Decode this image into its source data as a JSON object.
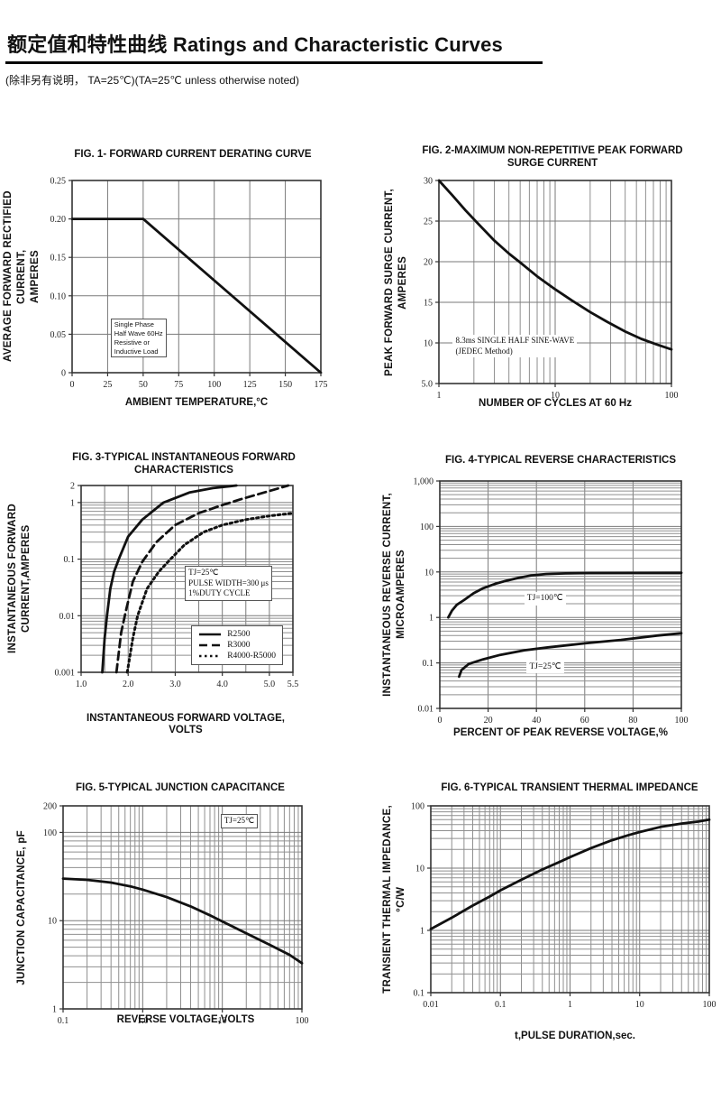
{
  "page": {
    "title": "额定值和特性曲线 Ratings and Characteristic Curves",
    "subtitle": "(除非另有说明， TA=25℃)(TA=25℃  unless otherwise noted)"
  },
  "colors": {
    "curve": "#111111",
    "grid": "#8f8f8f",
    "grid_major": "#7a7a7a",
    "axis": "#333333",
    "background": "#ffffff"
  },
  "chart_data": [
    {
      "type": "line",
      "title": "FIG. 1- FORWARD CURRENT DERATING CURVE",
      "xlabel": "AMBIENT TEMPERATURE,°C",
      "ylabel": "AVERAGE FORWARD RECTIFIED CURRENT,\nAMPERES",
      "x_axis": {
        "scale": "linear",
        "min": 0,
        "max": 175,
        "grid_step": 25,
        "ticks": [
          0,
          25,
          50,
          75,
          100,
          125,
          150,
          175
        ],
        "tick_labels": [
          "0",
          "25",
          "50",
          "75",
          "100",
          "125",
          "150",
          "175"
        ]
      },
      "y_axis": {
        "scale": "linear",
        "min": 0,
        "max": 0.25,
        "grid_step": 0.05,
        "ticks": [
          0.25,
          0.2,
          0.15,
          0.1,
          0.05,
          0
        ],
        "tick_labels": [
          "0.25",
          "0.20",
          "0.15",
          "0.10",
          "0.05",
          "0"
        ]
      },
      "series": [
        {
          "name": "forward-current-derating",
          "style": "solid",
          "points": [
            [
              0,
              0.2
            ],
            [
              50,
              0.2
            ],
            [
              175,
              0
            ]
          ]
        }
      ],
      "annotations": [
        {
          "text": "Single Phase\nHalf Wave 60Hz\nResistive or\nInductive Load",
          "fx": 0.155,
          "fy": 0.72,
          "boxed": true,
          "font": "sans",
          "size": 7.5
        }
      ]
    },
    {
      "type": "line",
      "title": "FIG. 2-MAXIMUM NON-REPETITIVE PEAK FORWARD\nSURGE CURRENT",
      "xlabel": "NUMBER OF CYCLES AT 60 Hz",
      "ylabel": "PEAK  FORWARD SURGE CURRENT,\nAMPERES",
      "x_axis": {
        "scale": "log",
        "min": 1,
        "max": 100,
        "ticks": [
          1,
          10,
          100
        ],
        "tick_labels": [
          "1",
          "10",
          "100"
        ]
      },
      "y_axis": {
        "scale": "linear",
        "min": 5,
        "max": 30,
        "grid_step": 5,
        "ticks": [
          30,
          25,
          20,
          15,
          10,
          5
        ],
        "tick_labels": [
          "30",
          "25",
          "20",
          "15",
          "10",
          "5.0"
        ]
      },
      "series": [
        {
          "name": "peak-surge-current",
          "style": "solid",
          "points": [
            [
              1,
              30
            ],
            [
              1.3,
              28.2
            ],
            [
              1.7,
              26.3
            ],
            [
              2.2,
              24.6
            ],
            [
              3,
              22.6
            ],
            [
              4,
              21
            ],
            [
              5,
              19.9
            ],
            [
              7,
              18.2
            ],
            [
              10,
              16.6
            ],
            [
              14,
              15.2
            ],
            [
              20,
              13.8
            ],
            [
              28,
              12.6
            ],
            [
              40,
              11.4
            ],
            [
              55,
              10.5
            ],
            [
              75,
              9.8
            ],
            [
              100,
              9.2
            ]
          ]
        }
      ],
      "annotations": [
        {
          "text": "8.3ms SINGLE HALF SINE-WAVE\n(JEDEC Method)",
          "fx": 0.06,
          "fy": 0.76,
          "boxed": false,
          "font": "serif",
          "size": 9
        }
      ]
    },
    {
      "type": "line",
      "title": "FIG. 3-TYPICAL INSTANTANEOUS FORWARD\nCHARACTERISTICS",
      "xlabel": "INSTANTANEOUS FORWARD VOLTAGE,\nVOLTS",
      "ylabel": "INSTANTANEOUS FORWARD\nCURRENT,AMPERES",
      "x_axis": {
        "scale": "linear",
        "min": 1.0,
        "max": 5.5,
        "grid_step": 0.5,
        "ticks": [
          1.0,
          2.0,
          3.0,
          4.0,
          5.0,
          5.5
        ],
        "tick_labels": [
          "1.0",
          "2.0",
          "3.0",
          "4.0",
          "5.0",
          "5.5"
        ]
      },
      "y_axis": {
        "scale": "log",
        "min": 0.001,
        "max": 2,
        "ticks": [
          2,
          1,
          0.1,
          0.01,
          0.001
        ],
        "tick_labels": [
          "2",
          "1",
          "0.1",
          "0.01",
          "0.001"
        ]
      },
      "series": [
        {
          "name": "R2500",
          "style": "solid",
          "points": [
            [
              1.45,
              0.001
            ],
            [
              1.5,
              0.004
            ],
            [
              1.55,
              0.01
            ],
            [
              1.62,
              0.03
            ],
            [
              1.7,
              0.06
            ],
            [
              1.8,
              0.1
            ],
            [
              2.0,
              0.25
            ],
            [
              2.3,
              0.5
            ],
            [
              2.75,
              1.0
            ],
            [
              3.3,
              1.5
            ],
            [
              3.8,
              1.8
            ],
            [
              4.3,
              2.0
            ]
          ]
        },
        {
          "name": "R3000",
          "style": "dashed",
          "points": [
            [
              1.75,
              0.001
            ],
            [
              1.85,
              0.005
            ],
            [
              1.95,
              0.012
            ],
            [
              2.1,
              0.04
            ],
            [
              2.3,
              0.09
            ],
            [
              2.6,
              0.2
            ],
            [
              3.0,
              0.4
            ],
            [
              3.5,
              0.65
            ],
            [
              4.0,
              0.9
            ],
            [
              4.4,
              1.15
            ],
            [
              5.0,
              1.6
            ],
            [
              5.4,
              2.0
            ]
          ]
        },
        {
          "name": "R4000-R5000",
          "style": "dotted",
          "points": [
            [
              1.98,
              0.001
            ],
            [
              2.1,
              0.004
            ],
            [
              2.2,
              0.01
            ],
            [
              2.4,
              0.03
            ],
            [
              2.65,
              0.06
            ],
            [
              2.9,
              0.1
            ],
            [
              3.2,
              0.18
            ],
            [
              3.6,
              0.3
            ],
            [
              4.0,
              0.4
            ],
            [
              4.5,
              0.5
            ],
            [
              5.0,
              0.58
            ],
            [
              5.5,
              0.65
            ]
          ]
        }
      ],
      "annotations": [
        {
          "text": "TJ=25℃\nPULSE WIDTH=300 μs\n1%DUTY CYCLE",
          "fx": 0.49,
          "fy": 0.43,
          "boxed": true,
          "font": "serif",
          "size": 9
        }
      ],
      "legend": {
        "fx": 0.52,
        "fy": 0.75,
        "entries": [
          {
            "style": "solid",
            "label": "R2500"
          },
          {
            "style": "dashed",
            "label": "R3000"
          },
          {
            "style": "dotted",
            "label": "R4000-R5000"
          }
        ]
      }
    },
    {
      "type": "line",
      "title": "FIG. 4-TYPICAL REVERSE CHARACTERISTICS",
      "xlabel": "PERCENT OF PEAK REVERSE VOLTAGE,%",
      "ylabel": "INSTANTANEOUS REVERSE CURRENT,\nMICROAMPERES",
      "x_axis": {
        "scale": "linear",
        "min": 0,
        "max": 100,
        "grid_step": 20,
        "ticks": [
          0,
          20,
          40,
          60,
          80,
          100
        ],
        "tick_labels": [
          "0",
          "20",
          "40",
          "60",
          "80",
          "100"
        ]
      },
      "y_axis": {
        "scale": "log",
        "min": 0.01,
        "max": 1000,
        "ticks": [
          1000,
          100,
          10,
          1,
          0.1,
          0.01
        ],
        "tick_labels": [
          "1,000",
          "100",
          "10",
          "1",
          "0.1",
          "0.01"
        ]
      },
      "series": [
        {
          "name": "TJ=100C",
          "style": "solid",
          "points": [
            [
              3.5,
              1
            ],
            [
              5,
              1.4
            ],
            [
              7,
              1.9
            ],
            [
              10,
              2.4
            ],
            [
              14,
              3.4
            ],
            [
              18,
              4.4
            ],
            [
              23,
              5.5
            ],
            [
              28,
              6.5
            ],
            [
              33,
              7.5
            ],
            [
              38,
              8.4
            ],
            [
              44,
              9.0
            ],
            [
              52,
              9.3
            ],
            [
              62,
              9.45
            ],
            [
              80,
              9.5
            ],
            [
              100,
              9.55
            ]
          ]
        },
        {
          "name": "TJ=25C",
          "style": "solid",
          "points": [
            [
              8,
              0.05
            ],
            [
              9,
              0.07
            ],
            [
              12,
              0.095
            ],
            [
              18,
              0.12
            ],
            [
              25,
              0.15
            ],
            [
              35,
              0.19
            ],
            [
              45,
              0.22
            ],
            [
              60,
              0.27
            ],
            [
              75,
              0.32
            ],
            [
              90,
              0.4
            ],
            [
              100,
              0.45
            ]
          ]
        }
      ],
      "annotations": [
        {
          "text": "TJ=100℃",
          "fx": 0.35,
          "fy": 0.49,
          "boxed": false,
          "font": "serif",
          "size": 9.5
        },
        {
          "text": "TJ=25℃",
          "fx": 0.36,
          "fy": 0.79,
          "boxed": false,
          "font": "serif",
          "size": 9.5
        }
      ]
    },
    {
      "type": "line",
      "title": "FIG. 5-TYPICAL JUNCTION CAPACITANCE",
      "xlabel": "REVERSE VOLTAGE,VOLTS",
      "ylabel": "JUNCTION CAPACITANCE, pF",
      "x_axis": {
        "scale": "log",
        "min": 0.1,
        "max": 100,
        "ticks": [
          0.1,
          1,
          10,
          100
        ],
        "tick_labels": [
          "0.1",
          "1.0",
          "10",
          "100"
        ]
      },
      "y_axis": {
        "scale": "log",
        "min": 1,
        "max": 200,
        "ticks": [
          200,
          100,
          10,
          1
        ],
        "tick_labels": [
          "200",
          "100",
          "10",
          "1"
        ]
      },
      "series": [
        {
          "name": "junction-capacitance",
          "style": "solid",
          "points": [
            [
              0.1,
              30
            ],
            [
              0.2,
              29
            ],
            [
              0.4,
              27
            ],
            [
              0.7,
              24.5
            ],
            [
              1,
              22.5
            ],
            [
              2,
              18.5
            ],
            [
              4,
              14.5
            ],
            [
              7,
              11.5
            ],
            [
              10,
              9.8
            ],
            [
              20,
              7.2
            ],
            [
              40,
              5.3
            ],
            [
              70,
              4.1
            ],
            [
              100,
              3.3
            ]
          ]
        }
      ],
      "annotations": [
        {
          "text": "TJ=25℃",
          "fx": 0.66,
          "fy": 0.04,
          "boxed": true,
          "font": "serif",
          "size": 9
        }
      ]
    },
    {
      "type": "line",
      "title": "FIG. 6-TYPICAL TRANSIENT THERMAL IMPEDANCE",
      "xlabel": "t,PULSE DURATION,sec.",
      "ylabel": "TRANSIENT THERMAL IMPEDANCE,\n°C/W",
      "x_axis": {
        "scale": "log",
        "min": 0.01,
        "max": 100,
        "ticks": [
          0.01,
          0.1,
          1,
          10,
          100
        ],
        "tick_labels": [
          "0.01",
          "0.1",
          "1",
          "10",
          "100"
        ]
      },
      "y_axis": {
        "scale": "log",
        "min": 0.1,
        "max": 100,
        "ticks": [
          100,
          10,
          1,
          0.1
        ],
        "tick_labels": [
          "100",
          "10",
          "1",
          "0.1"
        ]
      },
      "series": [
        {
          "name": "transient-thermal-impedance",
          "style": "solid",
          "points": [
            [
              0.01,
              1.05
            ],
            [
              0.02,
              1.6
            ],
            [
              0.04,
              2.5
            ],
            [
              0.07,
              3.5
            ],
            [
              0.1,
              4.4
            ],
            [
              0.2,
              6.5
            ],
            [
              0.4,
              9.5
            ],
            [
              0.7,
              12.5
            ],
            [
              1,
              15
            ],
            [
              2,
              21
            ],
            [
              4,
              28
            ],
            [
              7,
              34
            ],
            [
              10,
              38
            ],
            [
              20,
              46
            ],
            [
              40,
              52
            ],
            [
              70,
              56
            ],
            [
              100,
              60
            ]
          ]
        }
      ],
      "annotations": []
    }
  ]
}
